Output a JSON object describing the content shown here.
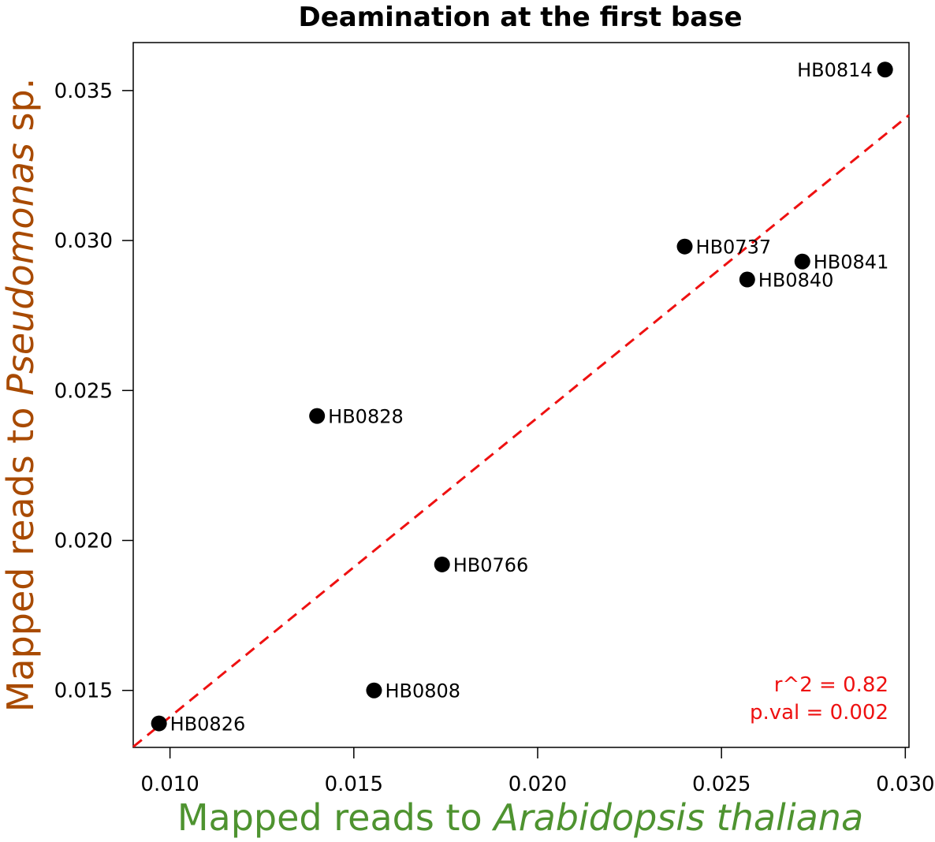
{
  "chart_data": {
    "type": "scatter",
    "title": "Deamination at the first base",
    "xlabel": {
      "prefix": "Mapped reads to ",
      "italic": "Arabidopsis thaliana",
      "suffix": ""
    },
    "ylabel": {
      "prefix": "Mapped reads to ",
      "italic": "Pseudomonas",
      "suffix": " sp."
    },
    "xlim": [
      0.009,
      0.0301
    ],
    "ylim": [
      0.0131,
      0.0366
    ],
    "xticks": [
      {
        "value": 0.01,
        "label": "0.010"
      },
      {
        "value": 0.015,
        "label": "0.015"
      },
      {
        "value": 0.02,
        "label": "0.020"
      },
      {
        "value": 0.025,
        "label": "0.025"
      },
      {
        "value": 0.03,
        "label": "0.030"
      }
    ],
    "yticks": [
      {
        "value": 0.015,
        "label": "0.015"
      },
      {
        "value": 0.02,
        "label": "0.020"
      },
      {
        "value": 0.025,
        "label": "0.025"
      },
      {
        "value": 0.03,
        "label": "0.030"
      },
      {
        "value": 0.035,
        "label": "0.035"
      }
    ],
    "points": [
      {
        "label": "HB0814",
        "x": 0.02945,
        "y": 0.0357,
        "label_side": "left"
      },
      {
        "label": "HB0737",
        "x": 0.024,
        "y": 0.0298,
        "label_side": "right"
      },
      {
        "label": "HB0841",
        "x": 0.0272,
        "y": 0.0293,
        "label_side": "right"
      },
      {
        "label": "HB0840",
        "x": 0.0257,
        "y": 0.0287,
        "label_side": "right"
      },
      {
        "label": "HB0828",
        "x": 0.014,
        "y": 0.02415,
        "label_side": "right"
      },
      {
        "label": "HB0766",
        "x": 0.0174,
        "y": 0.0192,
        "label_side": "right"
      },
      {
        "label": "HB0808",
        "x": 0.01555,
        "y": 0.015,
        "label_side": "right"
      },
      {
        "label": "HB0826",
        "x": 0.0097,
        "y": 0.0139,
        "label_side": "right"
      }
    ],
    "fit_line": {
      "style": "dashed",
      "color": "#ee1111",
      "start": {
        "x": 0.009,
        "y": 0.01312
      },
      "end": {
        "x": 0.0301,
        "y": 0.03418
      }
    },
    "stats": [
      "r^2 = 0.82",
      "p.val = 0.002"
    ],
    "colors": {
      "points": "#000000",
      "fit_line": "#ee1111",
      "stats": "#ee1111",
      "xlabel": "#4e9330",
      "ylabel": "#a84a00"
    },
    "grid": false
  }
}
